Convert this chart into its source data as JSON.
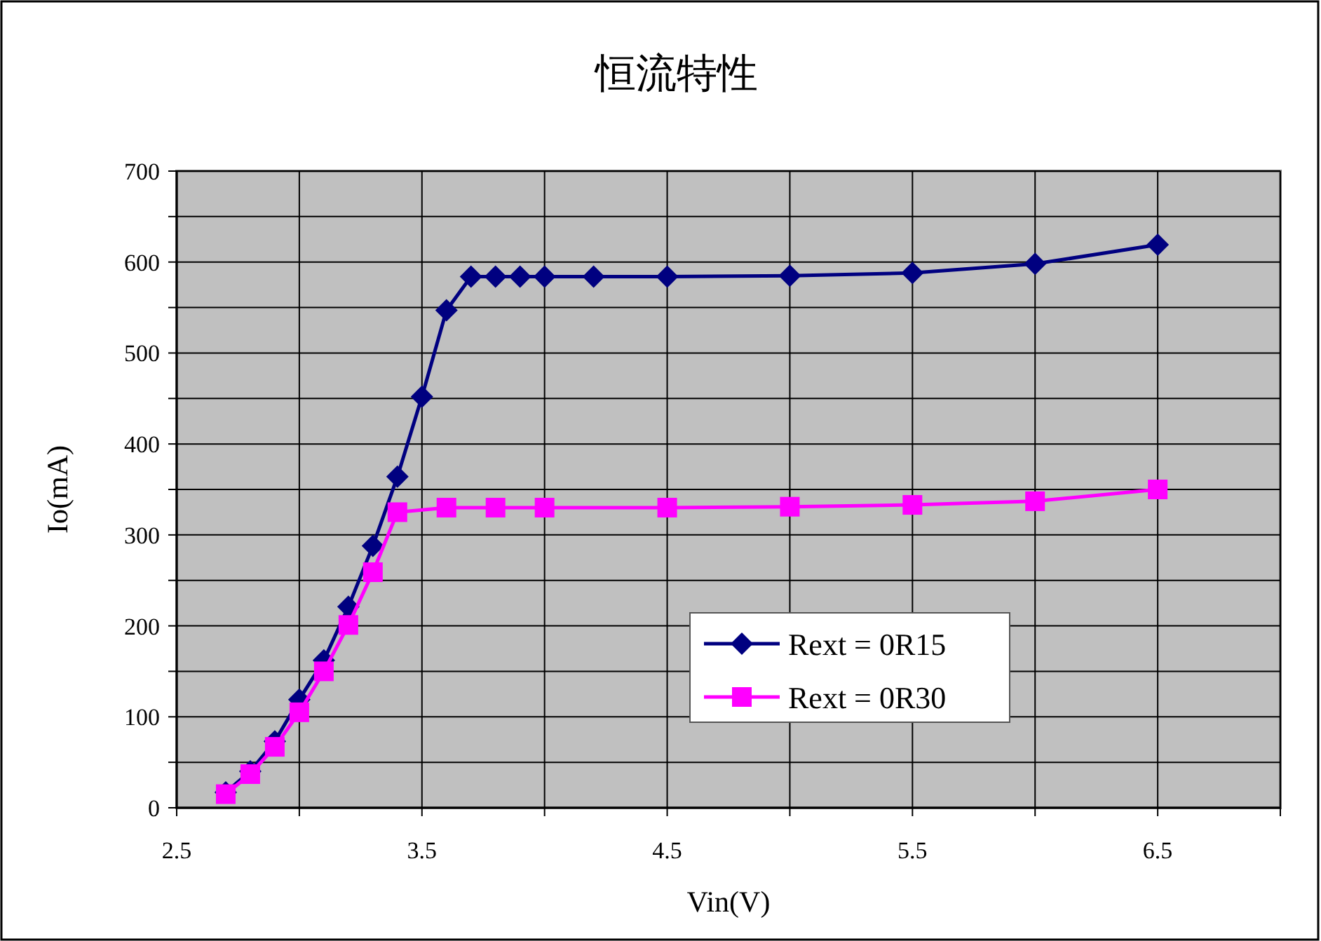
{
  "chart_data": {
    "type": "line",
    "title": "恒流特性",
    "xlabel": "Vin(V)",
    "ylabel": "Io(mA)",
    "xlim": [
      2.5,
      7.0
    ],
    "xticks": [
      2.5,
      {
        "value": 3.0,
        "label": null
      },
      3.5,
      {
        "value": 4.0,
        "label": null
      },
      4.5,
      {
        "value": 5.0,
        "label": null
      },
      5.5,
      {
        "value": 6.0,
        "label": null
      },
      6.5,
      {
        "value": 7.0,
        "label": null
      }
    ],
    "ylim": [
      0,
      700
    ],
    "yticks": [
      0,
      {
        "value": 50,
        "label": null
      },
      100,
      {
        "value": 150,
        "label": null
      },
      200,
      {
        "value": 250,
        "label": null
      },
      300,
      {
        "value": 350,
        "label": null
      },
      400,
      {
        "value": 450,
        "label": null
      },
      500,
      {
        "value": 550,
        "label": null
      },
      600,
      {
        "value": 650,
        "label": null
      },
      700
    ],
    "grid": true,
    "legend": "bottom right",
    "series": [
      {
        "name": "Rext = 0R15",
        "color": "#000080",
        "marker": "diamond",
        "x": [
          2.7,
          2.8,
          2.9,
          3.0,
          3.1,
          3.2,
          3.3,
          3.4,
          3.5,
          3.6,
          3.7,
          3.8,
          3.9,
          4.0,
          4.2,
          4.5,
          5.0,
          5.5,
          6.0,
          6.5
        ],
        "values": [
          17,
          40,
          73,
          119,
          162,
          221,
          288,
          364,
          452,
          547,
          584,
          584,
          584,
          584,
          584,
          584,
          585,
          588,
          598,
          619
        ]
      },
      {
        "name": "Rext = 0R30",
        "color": "#ff00ff",
        "marker": "square",
        "x": [
          2.7,
          2.8,
          2.9,
          3.0,
          3.1,
          3.2,
          3.3,
          3.4,
          3.6,
          3.8,
          4.0,
          4.5,
          5.0,
          5.5,
          6.0,
          6.5
        ],
        "values": [
          15,
          37,
          67,
          105,
          150,
          201,
          259,
          325,
          330,
          330,
          330,
          330,
          331,
          333,
          337,
          350
        ]
      }
    ]
  }
}
